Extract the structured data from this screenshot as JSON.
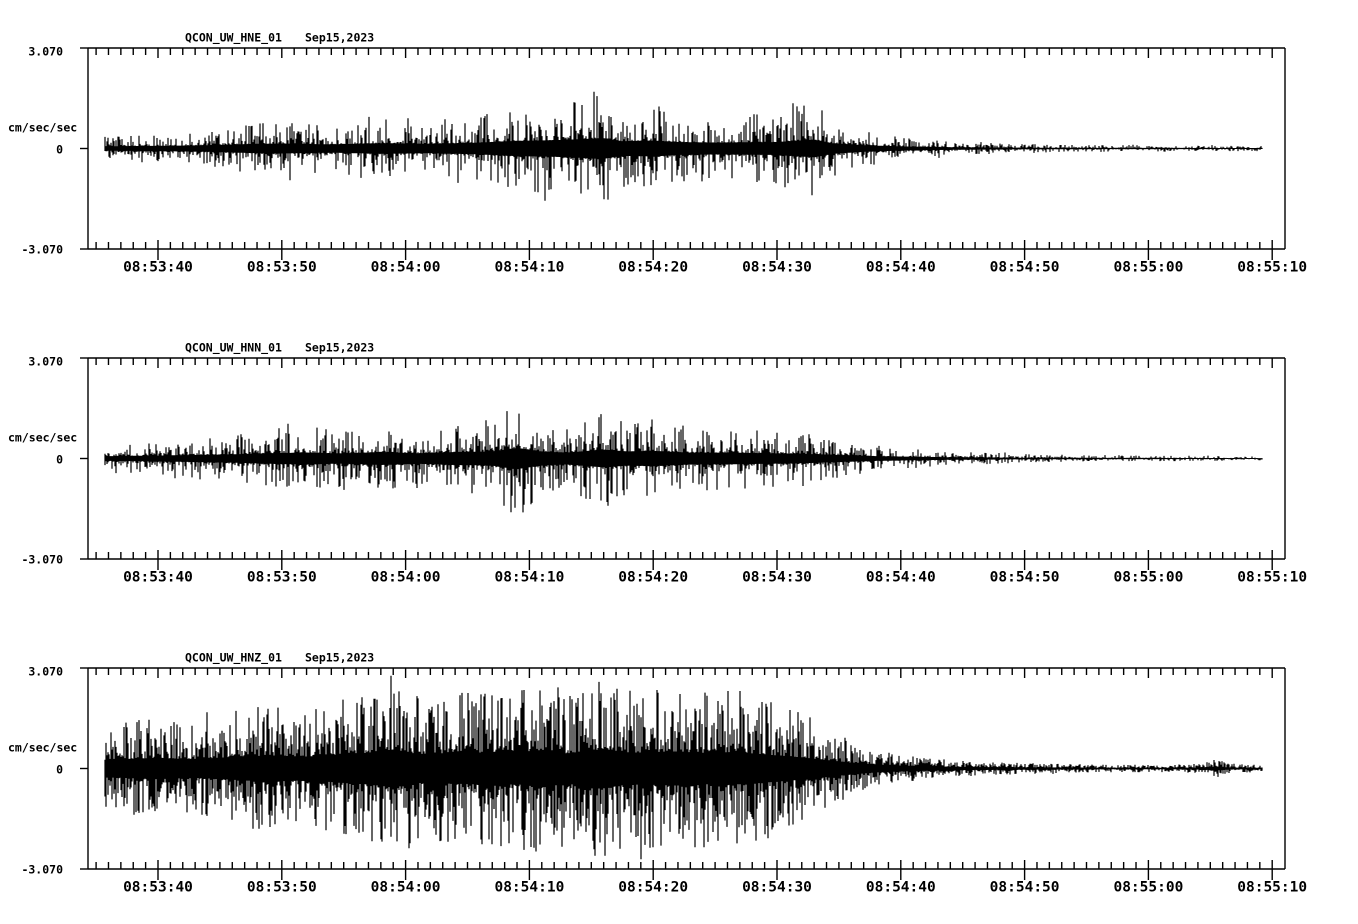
{
  "figure": {
    "background": "#ffffff",
    "foreground": "#000000",
    "kind": "three-component strong-motion accelerogram display"
  },
  "chart_data": [
    {
      "type": "line",
      "subtype": "seismogram-waveform",
      "title": "QCON_UW_HNE_01",
      "date_label": "Sep15,2023",
      "ylabel": "cm/sec/sec",
      "ytick_labels": [
        "3.070",
        "0",
        "-3.070"
      ],
      "ylim": [
        -3.07,
        3.07
      ],
      "xtick_labels": [
        "08:53:40",
        "08:53:50",
        "08:54:00",
        "08:54:10",
        "08:54:20",
        "08:54:30",
        "08:54:40",
        "08:54:50",
        "08:55:00",
        "08:55:10"
      ],
      "x_major_tick_sec": 10,
      "x_minor_tick_sec": 1,
      "data_start": "08:53:36",
      "data_end": "08:55:09",
      "grid": false,
      "legend": false,
      "amplitude_envelope": {
        "description": "peak |acceleration| in cm/sec/sec vs seconds after 08:53:40",
        "t_sec": [
          -4.3,
          0,
          4,
          8,
          10,
          14,
          18,
          22,
          26,
          29,
          32,
          36,
          37.5,
          40,
          42,
          45,
          48,
          50,
          53,
          54.5,
          57,
          60,
          63,
          66,
          70,
          75,
          80,
          85,
          89.2
        ],
        "amp": [
          0.38,
          0.45,
          0.55,
          0.8,
          0.85,
          0.7,
          0.9,
          0.8,
          1.0,
          1.3,
          1.4,
          1.75,
          1.25,
          1.35,
          1.1,
          1.0,
          1.05,
          1.1,
          1.5,
          0.9,
          0.55,
          0.35,
          0.25,
          0.18,
          0.14,
          0.11,
          0.1,
          0.09,
          0.08
        ]
      },
      "notable_peaks": [
        {
          "t_sec_after_0853_40": 36,
          "amp_cm_s2": 1.75
        },
        {
          "t_sec_after_0853_40": 53,
          "amp_cm_s2": 1.5
        }
      ]
    },
    {
      "type": "line",
      "subtype": "seismogram-waveform",
      "title": "QCON_UW_HNN_01",
      "date_label": "Sep15,2023",
      "ylabel": "cm/sec/sec",
      "ytick_labels": [
        "3.070",
        "0",
        "-3.070"
      ],
      "ylim": [
        -3.07,
        3.07
      ],
      "xtick_labels": [
        "08:53:40",
        "08:53:50",
        "08:54:00",
        "08:54:10",
        "08:54:20",
        "08:54:30",
        "08:54:40",
        "08:54:50",
        "08:55:00",
        "08:55:10"
      ],
      "x_major_tick_sec": 10,
      "x_minor_tick_sec": 1,
      "data_start": "08:53:36",
      "data_end": "08:55:09",
      "grid": false,
      "legend": false,
      "amplitude_envelope": {
        "description": "peak |acceleration| in cm/sec/sec vs seconds after 08:53:40",
        "t_sec": [
          -4.3,
          0,
          3,
          6,
          9,
          12,
          15,
          18,
          21,
          24,
          27,
          29,
          31,
          33,
          36,
          38,
          40,
          43,
          46,
          49,
          52,
          55,
          58,
          61,
          64,
          68,
          72,
          78,
          84,
          89.2
        ],
        "amp": [
          0.4,
          0.5,
          0.6,
          0.7,
          0.9,
          1.0,
          0.85,
          1.1,
          0.9,
          1.1,
          1.2,
          1.8,
          1.2,
          1.0,
          1.5,
          1.2,
          1.3,
          1.0,
          1.0,
          0.9,
          0.8,
          0.6,
          0.4,
          0.3,
          0.22,
          0.16,
          0.12,
          0.1,
          0.08,
          0.07
        ]
      },
      "notable_peaks": [
        {
          "t_sec_after_0853_40": 29,
          "amp_cm_s2": 1.8
        },
        {
          "t_sec_after_0853_40": 36,
          "amp_cm_s2": -1.5
        }
      ]
    },
    {
      "type": "line",
      "subtype": "seismogram-waveform",
      "title": "QCON_UW_HNZ_01",
      "date_label": "Sep15,2023",
      "ylabel": "cm/sec/sec",
      "ytick_labels": [
        "3.070",
        "0",
        "-3.070"
      ],
      "ylim": [
        -3.07,
        3.07
      ],
      "xtick_labels": [
        "08:53:40",
        "08:53:50",
        "08:54:00",
        "08:54:10",
        "08:54:20",
        "08:54:30",
        "08:54:40",
        "08:54:50",
        "08:55:00",
        "08:55:10"
      ],
      "x_major_tick_sec": 10,
      "x_minor_tick_sec": 1,
      "data_start": "08:53:36",
      "data_end": "08:55:09",
      "grid": false,
      "legend": false,
      "amplitude_envelope": {
        "description": "peak |acceleration| in cm/sec/sec vs seconds after 08:53:40",
        "t_sec": [
          -4.3,
          -2,
          0,
          3,
          6,
          9,
          12,
          15,
          17,
          19,
          21,
          24,
          27,
          29,
          31,
          33,
          36,
          38,
          40,
          42,
          44,
          46,
          48,
          50,
          52,
          54,
          56,
          58,
          60,
          63,
          66,
          70,
          75,
          80,
          84,
          85.5,
          86.5,
          89.2
        ],
        "amp": [
          1.3,
          1.5,
          1.6,
          1.4,
          1.7,
          2.0,
          1.8,
          2.2,
          2.4,
          2.9,
          2.2,
          2.3,
          2.5,
          2.4,
          2.85,
          2.3,
          3.0,
          2.4,
          2.5,
          2.6,
          2.4,
          2.5,
          2.3,
          2.0,
          1.7,
          1.3,
          0.9,
          0.6,
          0.45,
          0.3,
          0.22,
          0.17,
          0.13,
          0.11,
          0.14,
          0.3,
          0.15,
          0.1
        ]
      },
      "notable_peaks": [
        {
          "t_sec_after_0853_40": 19,
          "amp_cm_s2": 2.9
        },
        {
          "t_sec_after_0853_40": 31,
          "amp_cm_s2": 2.85
        },
        {
          "t_sec_after_0853_40": 36,
          "amp_cm_s2": -3.0
        },
        {
          "t_sec_after_0853_40": 85.5,
          "amp_cm_s2": 0.3
        }
      ]
    }
  ]
}
